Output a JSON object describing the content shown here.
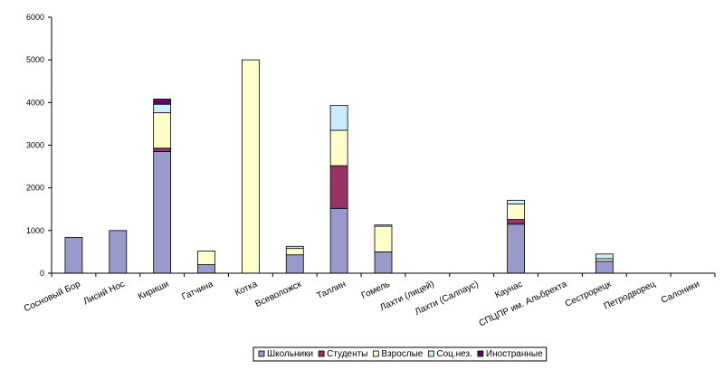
{
  "chart_data": {
    "type": "bar",
    "stacked": true,
    "title": "",
    "xlabel": "",
    "ylabel": "",
    "ylim": [
      0,
      6000
    ],
    "yticks": [
      0,
      1000,
      2000,
      3000,
      4000,
      5000,
      6000
    ],
    "grid": false,
    "legend_position": "bottom",
    "categories": [
      "Сосновый Бор",
      "Лисий Нос",
      "Кириши",
      "Гатчина",
      "Котка",
      "Всеволожск",
      "Таллин",
      "Гомель",
      "Лахти (лицей)",
      "Лахти (Салпаус)",
      "Каунас",
      "СПЦПР им. Альбрехта",
      "Сестрорецк",
      "Петродворец",
      "Салоники"
    ],
    "series": [
      {
        "name": "Школьники",
        "color": "#9999cc",
        "values": [
          840,
          1000,
          2850,
          200,
          0,
          430,
          1520,
          500,
          0,
          0,
          1150,
          0,
          280,
          0,
          0
        ]
      },
      {
        "name": "Студенты",
        "color": "#993366",
        "values": [
          0,
          0,
          80,
          0,
          0,
          0,
          1000,
          0,
          0,
          0,
          110,
          0,
          0,
          0,
          0
        ]
      },
      {
        "name": "Взрослые",
        "color": "#ffffcc",
        "values": [
          0,
          0,
          830,
          320,
          5000,
          150,
          830,
          600,
          0,
          0,
          360,
          0,
          60,
          0,
          0
        ]
      },
      {
        "name": "Соц.нез.",
        "color": "#ccecff",
        "values": [
          0,
          0,
          200,
          0,
          0,
          50,
          580,
          30,
          0,
          0,
          90,
          0,
          110,
          0,
          0
        ]
      },
      {
        "name": "Иностранные",
        "color": "#660066",
        "values": [
          0,
          0,
          120,
          0,
          0,
          0,
          0,
          0,
          0,
          0,
          0,
          0,
          0,
          0,
          0
        ]
      }
    ]
  }
}
